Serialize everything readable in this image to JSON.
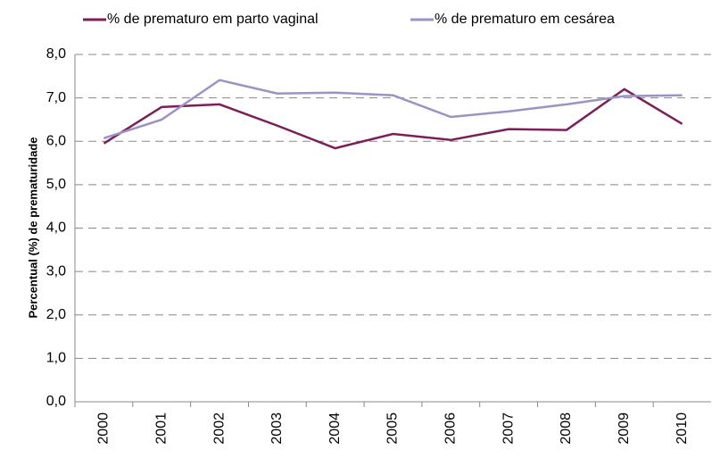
{
  "chart_data": {
    "type": "line",
    "y_label": "Percentual (%) de prematuridade",
    "categories": [
      "2000",
      "2001",
      "2002",
      "2003",
      "2004",
      "2005",
      "2006",
      "2007",
      "2008",
      "2009",
      "2010"
    ],
    "series": [
      {
        "name": "% de prematuro em parto vaginal",
        "color": "#7b1f5a",
        "values": [
          5.95,
          6.79,
          6.85,
          6.36,
          5.84,
          6.17,
          6.03,
          6.28,
          6.26,
          7.2,
          6.4
        ]
      },
      {
        "name": "% de prematuro em cesárea",
        "color": "#9b93c4",
        "values": [
          6.07,
          6.5,
          7.41,
          7.1,
          7.12,
          7.06,
          6.56,
          6.69,
          6.85,
          7.04,
          7.06
        ]
      }
    ],
    "ylim": [
      0,
      8
    ],
    "yticks": [
      {
        "value": 0,
        "label": "0,0"
      },
      {
        "value": 1,
        "label": "1,0"
      },
      {
        "value": 2,
        "label": "2,0"
      },
      {
        "value": 3,
        "label": "3,0"
      },
      {
        "value": 4,
        "label": "4,0"
      },
      {
        "value": 5,
        "label": "5,0"
      },
      {
        "value": 6,
        "label": "6,0"
      },
      {
        "value": 7,
        "label": "7,0"
      },
      {
        "value": 8,
        "label": "8,0"
      }
    ],
    "grid": true,
    "legend": "top"
  }
}
